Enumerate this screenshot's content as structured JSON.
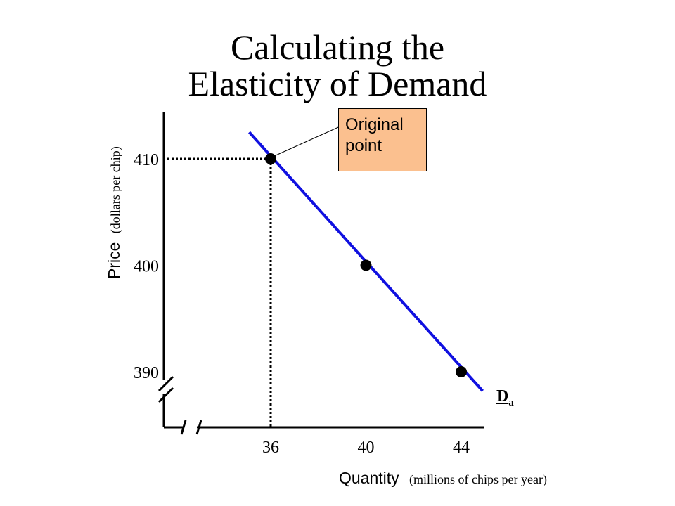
{
  "slide": {
    "title_line1": "Calculating the",
    "title_line2": "Elasticity of Demand"
  },
  "callout": {
    "line1": "Original",
    "line2": "point"
  },
  "demand_label": {
    "main": "D",
    "sub": "a"
  },
  "chart_data": {
    "type": "line",
    "x_ticks": [
      "36",
      "40",
      "44"
    ],
    "y_ticks": [
      "390",
      "400",
      "410"
    ],
    "xlabel": "Quantity",
    "xlabel_unit": "(millions of chips per year)",
    "ylabel": "Price",
    "ylabel_unit": "(dollars per chip)",
    "series": [
      {
        "name": "Da",
        "x": [
          35.1,
          44.9
        ],
        "y": [
          412.5,
          388.2
        ]
      }
    ],
    "points": [
      {
        "x": 36,
        "y": 410
      },
      {
        "x": 40,
        "y": 400
      },
      {
        "x": 44,
        "y": 390
      }
    ],
    "reference_point": {
      "x": 36,
      "y": 410
    },
    "axis_breaks": true,
    "colors": {
      "demand_line": "#1010e0",
      "callout_fill": "#fbc08f"
    }
  }
}
